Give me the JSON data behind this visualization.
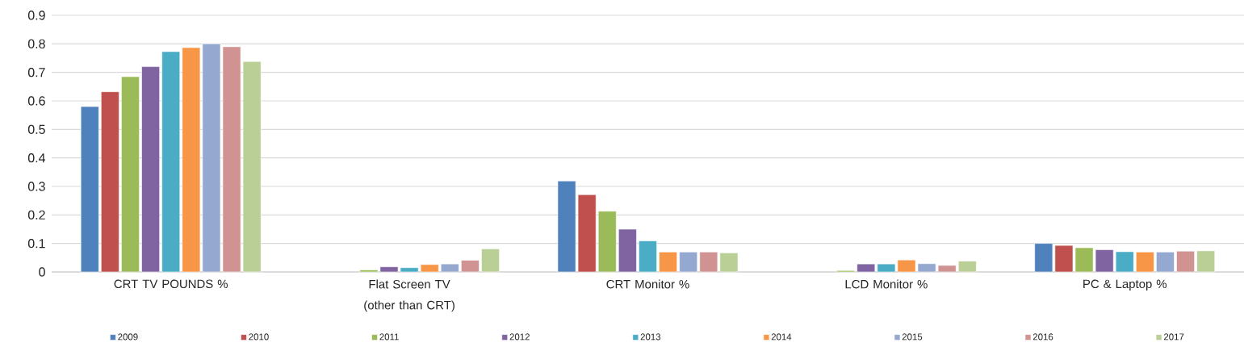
{
  "chart_data": {
    "type": "bar",
    "categories": [
      "CRT TV POUNDS %",
      "Flat Screen TV (other than CRT)",
      "CRT Monitor %",
      "LCD Monitor %",
      "PC & Laptop %"
    ],
    "series": [
      {
        "name": "2009",
        "color": "#4f81bd",
        "values": [
          0.58,
          null,
          0.319,
          null,
          0.1
        ]
      },
      {
        "name": "2010",
        "color": "#c0504d",
        "values": [
          0.632,
          null,
          0.271,
          null,
          0.093
        ]
      },
      {
        "name": "2011",
        "color": "#9bbb59",
        "values": [
          0.685,
          0.007,
          0.213,
          0.005,
          0.085
        ]
      },
      {
        "name": "2012",
        "color": "#8064a2",
        "values": [
          0.72,
          0.018,
          0.15,
          0.028,
          0.078
        ]
      },
      {
        "name": "2013",
        "color": "#4bacc6",
        "values": [
          0.773,
          0.015,
          0.109,
          0.028,
          0.071
        ]
      },
      {
        "name": "2014",
        "color": "#f79646",
        "values": [
          0.787,
          0.026,
          0.07,
          0.042,
          0.07
        ]
      },
      {
        "name": "2015",
        "color": "#95a9d0",
        "values": [
          0.8,
          0.028,
          0.07,
          0.029,
          0.07
        ]
      },
      {
        "name": "2016",
        "color": "#d19392",
        "values": [
          0.79,
          0.041,
          0.07,
          0.023,
          0.073
        ]
      },
      {
        "name": "2017",
        "color": "#b9cf96",
        "values": [
          0.738,
          0.081,
          0.067,
          0.038,
          0.074
        ]
      }
    ],
    "ylim": [
      0,
      0.9
    ],
    "yticks": [
      0,
      0.1,
      0.2,
      0.3,
      0.4,
      0.5,
      0.6,
      0.7,
      0.8,
      0.9
    ],
    "grid": "y",
    "legend": "bottom"
  }
}
